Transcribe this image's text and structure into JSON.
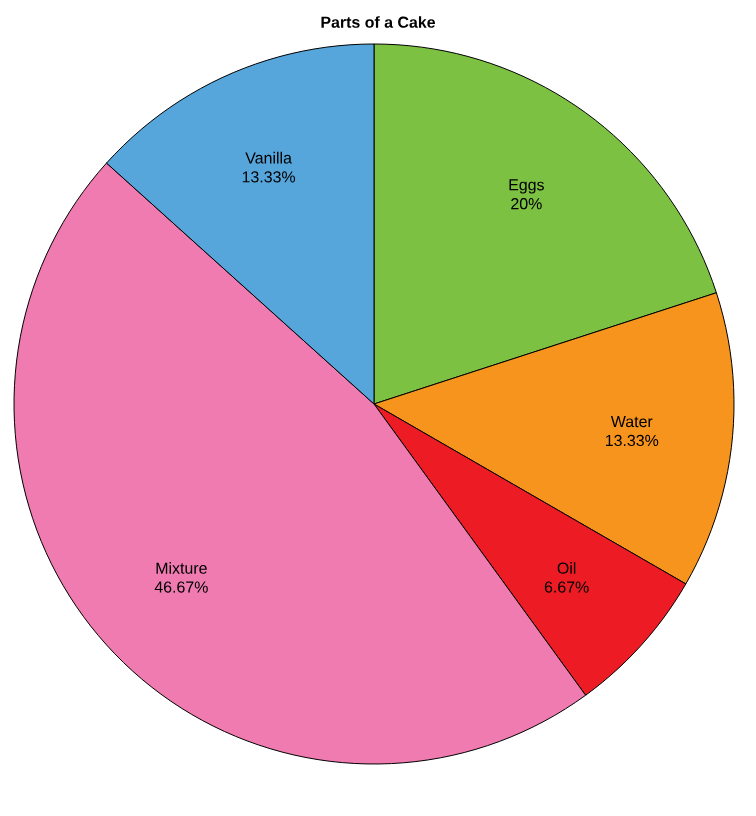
{
  "chart_data": {
    "type": "pie",
    "title": "Parts of a Cake",
    "categories": [
      "Eggs",
      "Water",
      "Oil",
      "Mixture",
      "Vanilla"
    ],
    "values": [
      20,
      13.33,
      6.67,
      46.67,
      13.33
    ],
    "value_labels": [
      "20%",
      "13.33%",
      "6.67%",
      "46.67%",
      "13.33%"
    ],
    "colors": [
      "#7dc142",
      "#f7941d",
      "#ed1c24",
      "#f07bb0",
      "#56a6dc"
    ]
  }
}
